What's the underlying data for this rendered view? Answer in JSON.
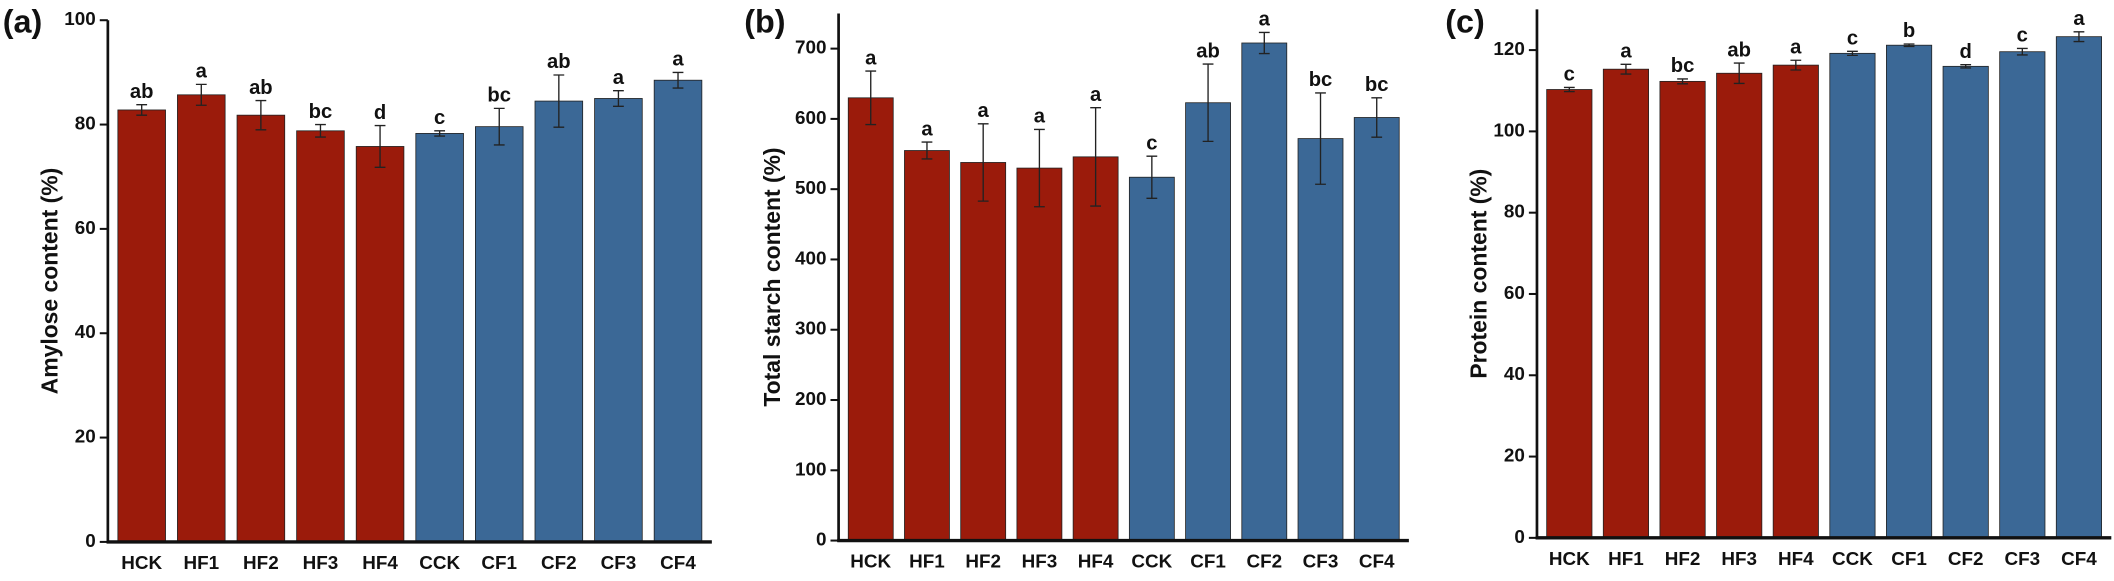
{
  "chart_data": [
    {
      "type": "bar",
      "panel_label": "(a)",
      "y_label": "Amylose content (%)",
      "categories": [
        "HCK",
        "HF1",
        "HF2",
        "HF3",
        "HF4",
        "CCK",
        "CF1",
        "CF2",
        "CF3",
        "CF4"
      ],
      "values": [
        82.8,
        85.7,
        81.8,
        78.8,
        75.8,
        78.3,
        79.6,
        84.5,
        85.0,
        88.5
      ],
      "errors": [
        1,
        2,
        2.8,
        1.2,
        4,
        0.5,
        3.5,
        5,
        1.5,
        1.5
      ],
      "letters": [
        "ab",
        "a",
        "ab",
        "bc",
        "d",
        "c",
        "bc",
        "ab",
        "a",
        "a"
      ],
      "colors": [
        "#9b1b0b",
        "#9b1b0b",
        "#9b1b0b",
        "#9b1b0b",
        "#9b1b0b",
        "#3b6896",
        "#3b6896",
        "#3b6896",
        "#3b6896",
        "#3b6896"
      ],
      "ylim": [
        0,
        100
      ],
      "yticks": [
        0,
        20,
        40,
        60,
        80,
        100
      ]
    },
    {
      "type": "bar",
      "panel_label": "(b)",
      "y_label": "Total starch content (%)",
      "categories": [
        "HCK",
        "HF1",
        "HF2",
        "HF3",
        "HF4",
        "CCK",
        "CF1",
        "CF2",
        "CF3",
        "CF4"
      ],
      "values": [
        630,
        555,
        538,
        530,
        546,
        517,
        623,
        708,
        572,
        602
      ],
      "errors": [
        38,
        12,
        55,
        55,
        70,
        30,
        55,
        15,
        65,
        28
      ],
      "letters": [
        "a",
        "a",
        "a",
        "a",
        "a",
        "c",
        "ab",
        "a",
        "bc",
        "bc"
      ],
      "colors": [
        "#9b1b0b",
        "#9b1b0b",
        "#9b1b0b",
        "#9b1b0b",
        "#9b1b0b",
        "#3b6896",
        "#3b6896",
        "#3b6896",
        "#3b6896",
        "#3b6896"
      ],
      "ylim": [
        0,
        750
      ],
      "yticks": [
        0,
        100,
        200,
        300,
        400,
        500,
        600,
        700
      ]
    },
    {
      "type": "bar",
      "panel_label": "(c)",
      "y_label": "Protein content (%)",
      "categories": [
        "HCK",
        "HF1",
        "HF2",
        "HF3",
        "HF4",
        "CCK",
        "CF1",
        "CF2",
        "CF3",
        "CF4"
      ],
      "values": [
        110.3,
        115.3,
        112.3,
        114.3,
        116.3,
        119.2,
        121.2,
        116,
        119.6,
        123.3
      ],
      "errors": [
        0.5,
        1.2,
        0.6,
        2.5,
        1.2,
        0.5,
        0.3,
        0.4,
        0.8,
        1.2
      ],
      "letters": [
        "c",
        "a",
        "bc",
        "ab",
        "a",
        "c",
        "b",
        "d",
        "c",
        "a"
      ],
      "colors": [
        "#9b1b0b",
        "#9b1b0b",
        "#9b1b0b",
        "#9b1b0b",
        "#9b1b0b",
        "#3b6896",
        "#3b6896",
        "#3b6896",
        "#3b6896",
        "#3b6896"
      ],
      "ylim": [
        0,
        130
      ],
      "yticks": [
        0,
        20,
        40,
        60,
        80,
        100,
        120
      ]
    }
  ]
}
